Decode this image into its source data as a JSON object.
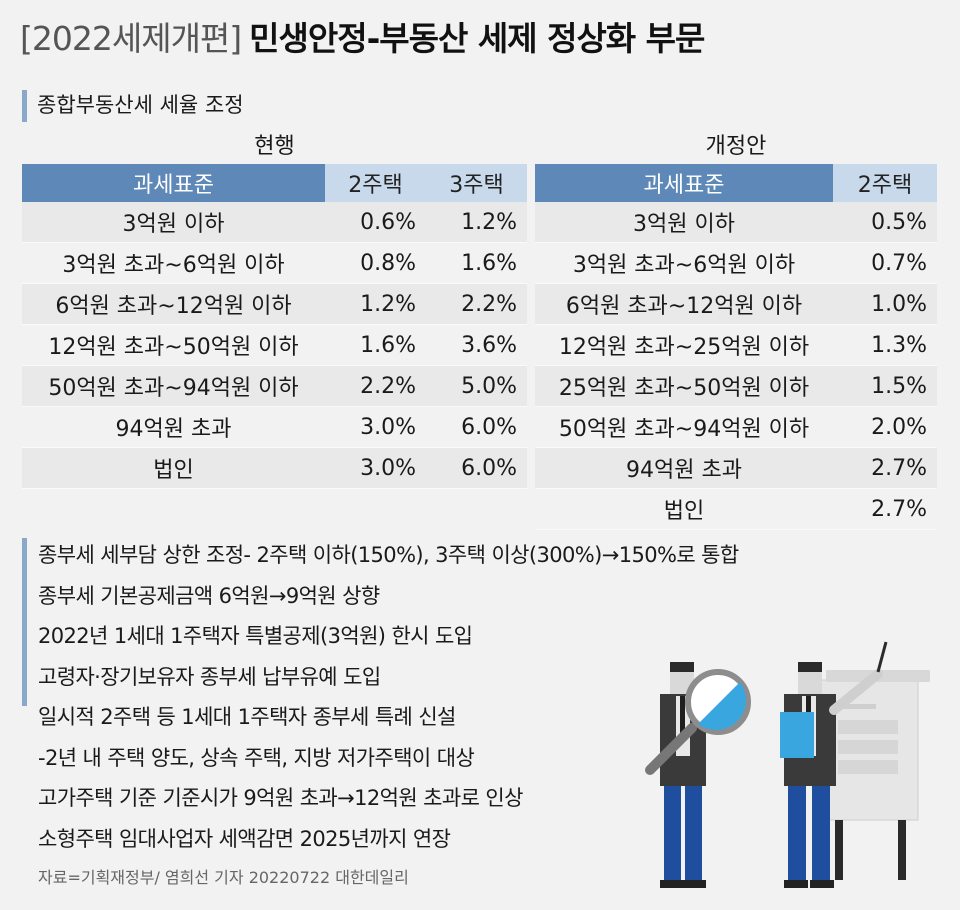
{
  "header": {
    "bracket": "[2022세제개편]",
    "title": "민생안정-부동산 세제 정상화 부문"
  },
  "section": {
    "label": "종합부동산세 세율 조정"
  },
  "current": {
    "caption": "현행",
    "headers": [
      "과세표준",
      "2주택",
      "3주택"
    ],
    "rows": [
      {
        "bracket": "3억원 이하",
        "two": "0.6%",
        "three": "1.2%"
      },
      {
        "bracket": "3억원 초과~6억원 이하",
        "two": "0.8%",
        "three": "1.6%"
      },
      {
        "bracket": "6억원 초과~12억원 이하",
        "two": "1.2%",
        "three": "2.2%"
      },
      {
        "bracket": "12억원 초과~50억원 이하",
        "two": "1.6%",
        "three": "3.6%"
      },
      {
        "bracket": "50억원 초과~94억원 이하",
        "two": "2.2%",
        "three": "5.0%"
      },
      {
        "bracket": "94억원 초과",
        "two": "3.0%",
        "three": "6.0%"
      },
      {
        "bracket": "법인",
        "two": "3.0%",
        "three": "6.0%"
      }
    ]
  },
  "revised": {
    "caption": "개정안",
    "headers": [
      "과세표준",
      "2주택"
    ],
    "rows": [
      {
        "bracket": "3억원 이하",
        "two": "0.5%"
      },
      {
        "bracket": "3억원 초과~6억원 이하",
        "two": "0.7%"
      },
      {
        "bracket": "6억원 초과~12억원 이하",
        "two": "1.0%"
      },
      {
        "bracket": "12억원 초과~25억원 이하",
        "two": "1.3%"
      },
      {
        "bracket": "25억원 초과~50억원 이하",
        "two": "1.5%"
      },
      {
        "bracket": "50억원 초과~94억원 이하",
        "two": "2.0%"
      },
      {
        "bracket": "94억원 초과",
        "two": "2.7%"
      },
      {
        "bracket": "법인",
        "two": "2.7%"
      }
    ]
  },
  "notes": [
    "종부세 세부담 상한 조정- 2주택 이하(150%), 3주택 이상(300%)→150%로 통합",
    "종부세 기본공제금액 6억원→9억원 상향",
    "2022년 1세대 1주택자 특별공제(3억원) 한시 도입",
    "고령자·장기보유자 종부세 납부유예 도입",
    "일시적 2주택 등 1세대 1주택자 종부세 특례 신설",
    "-2년 내 주택 양도, 상속 주택, 지방 저가주택이 대상",
    "고가주택 기준 기준시가 9억원 초과→12억원 초과로 인상",
    "소형주택 임대사업자 세액감면 2025년까지 연장"
  ],
  "source": "자료=기획재정부/ 염희선 기자 20220722 대한데일리",
  "colors": {
    "header_blue": "#5e88b7",
    "header_light": "#c9d9ec",
    "accent_bar": "#8aa8c9"
  }
}
